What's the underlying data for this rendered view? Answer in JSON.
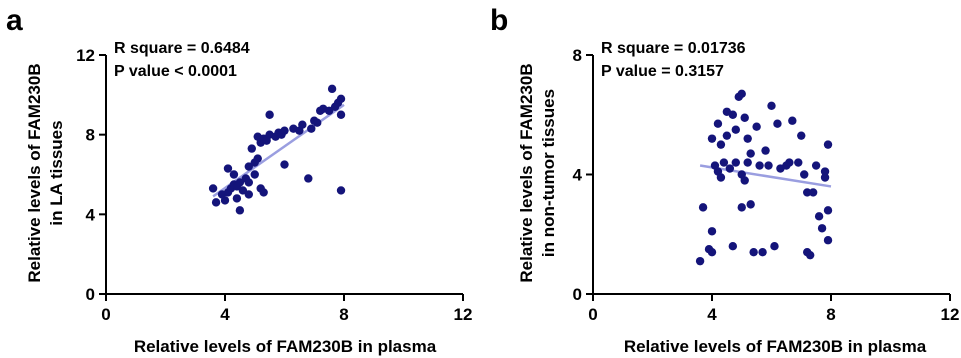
{
  "chart_data": [
    {
      "panel_label": "a",
      "type": "scatter",
      "xlabel": "Relative levels of FAM230B in plasma",
      "ylabel_lines": [
        "Relative levels of FAM230B",
        "in LA tissues"
      ],
      "xlim": [
        0,
        12
      ],
      "ylim": [
        0,
        12
      ],
      "xticks": [
        0,
        4,
        8,
        12
      ],
      "yticks": [
        0,
        4,
        8,
        12
      ],
      "annotations": [
        "R square = 0.6484",
        "P value < 0.0001"
      ],
      "point_color": "#14147a",
      "fit_color": "#9a9ee0",
      "fit_line": {
        "x": [
          3.6,
          8.0
        ],
        "y": [
          4.9,
          9.5
        ]
      },
      "points": [
        {
          "x": 3.6,
          "y": 5.3
        },
        {
          "x": 3.7,
          "y": 4.6
        },
        {
          "x": 3.9,
          "y": 5.0
        },
        {
          "x": 4.0,
          "y": 4.7
        },
        {
          "x": 4.1,
          "y": 5.1
        },
        {
          "x": 4.1,
          "y": 6.3
        },
        {
          "x": 4.2,
          "y": 5.3
        },
        {
          "x": 4.3,
          "y": 6.0
        },
        {
          "x": 4.3,
          "y": 5.5
        },
        {
          "x": 4.4,
          "y": 4.8
        },
        {
          "x": 4.4,
          "y": 5.4
        },
        {
          "x": 4.5,
          "y": 4.2
        },
        {
          "x": 4.5,
          "y": 5.6
        },
        {
          "x": 4.6,
          "y": 5.2
        },
        {
          "x": 4.7,
          "y": 5.8
        },
        {
          "x": 4.8,
          "y": 5.6
        },
        {
          "x": 4.8,
          "y": 6.4
        },
        {
          "x": 4.8,
          "y": 5.0
        },
        {
          "x": 4.9,
          "y": 7.3
        },
        {
          "x": 5.0,
          "y": 6.0
        },
        {
          "x": 5.0,
          "y": 6.6
        },
        {
          "x": 5.1,
          "y": 7.9
        },
        {
          "x": 5.1,
          "y": 6.8
        },
        {
          "x": 5.2,
          "y": 5.3
        },
        {
          "x": 5.2,
          "y": 7.6
        },
        {
          "x": 5.3,
          "y": 5.1
        },
        {
          "x": 5.3,
          "y": 7.8
        },
        {
          "x": 5.4,
          "y": 7.7
        },
        {
          "x": 5.5,
          "y": 9.0
        },
        {
          "x": 5.5,
          "y": 8.0
        },
        {
          "x": 5.7,
          "y": 7.9
        },
        {
          "x": 5.8,
          "y": 8.1
        },
        {
          "x": 5.9,
          "y": 8.0
        },
        {
          "x": 6.0,
          "y": 8.2
        },
        {
          "x": 6.0,
          "y": 6.5
        },
        {
          "x": 6.3,
          "y": 8.3
        },
        {
          "x": 6.5,
          "y": 8.2
        },
        {
          "x": 6.6,
          "y": 8.5
        },
        {
          "x": 6.8,
          "y": 5.8
        },
        {
          "x": 6.9,
          "y": 8.3
        },
        {
          "x": 7.0,
          "y": 8.7
        },
        {
          "x": 7.1,
          "y": 8.6
        },
        {
          "x": 7.2,
          "y": 9.2
        },
        {
          "x": 7.3,
          "y": 9.3
        },
        {
          "x": 7.5,
          "y": 9.2
        },
        {
          "x": 7.6,
          "y": 10.3
        },
        {
          "x": 7.7,
          "y": 9.4
        },
        {
          "x": 7.8,
          "y": 9.6
        },
        {
          "x": 7.9,
          "y": 9.8
        },
        {
          "x": 7.9,
          "y": 5.2
        },
        {
          "x": 7.9,
          "y": 9.0
        }
      ]
    },
    {
      "panel_label": "b",
      "type": "scatter",
      "xlabel": "Relative levels of FAM230B in plasma",
      "ylabel_lines": [
        "Relative levels of FAM230B",
        "in non-tumor tissues"
      ],
      "xlim": [
        0,
        12
      ],
      "ylim": [
        0,
        8
      ],
      "xticks": [
        0,
        4,
        8,
        12
      ],
      "yticks": [
        0,
        4,
        8
      ],
      "annotations": [
        "R square = 0.01736",
        "P value = 0.3157"
      ],
      "point_color": "#14147a",
      "fit_color": "#9a9ee0",
      "fit_line": {
        "x": [
          3.6,
          8.0
        ],
        "y": [
          4.3,
          3.6
        ]
      },
      "points": [
        {
          "x": 3.6,
          "y": 1.1
        },
        {
          "x": 3.7,
          "y": 2.9
        },
        {
          "x": 3.9,
          "y": 1.5
        },
        {
          "x": 4.0,
          "y": 1.4
        },
        {
          "x": 4.0,
          "y": 2.1
        },
        {
          "x": 4.0,
          "y": 5.2
        },
        {
          "x": 4.1,
          "y": 4.3
        },
        {
          "x": 4.2,
          "y": 4.1
        },
        {
          "x": 4.2,
          "y": 5.7
        },
        {
          "x": 4.3,
          "y": 3.9
        },
        {
          "x": 4.3,
          "y": 5.0
        },
        {
          "x": 4.4,
          "y": 4.4
        },
        {
          "x": 4.5,
          "y": 6.1
        },
        {
          "x": 4.5,
          "y": 5.3
        },
        {
          "x": 4.6,
          "y": 4.2
        },
        {
          "x": 4.7,
          "y": 1.6
        },
        {
          "x": 4.7,
          "y": 6.0
        },
        {
          "x": 4.8,
          "y": 4.4
        },
        {
          "x": 4.8,
          "y": 5.5
        },
        {
          "x": 4.9,
          "y": 6.6
        },
        {
          "x": 5.0,
          "y": 6.7
        },
        {
          "x": 5.0,
          "y": 4.0
        },
        {
          "x": 5.0,
          "y": 2.9
        },
        {
          "x": 5.1,
          "y": 5.9
        },
        {
          "x": 5.1,
          "y": 3.8
        },
        {
          "x": 5.2,
          "y": 4.4
        },
        {
          "x": 5.2,
          "y": 5.2
        },
        {
          "x": 5.3,
          "y": 4.7
        },
        {
          "x": 5.3,
          "y": 3.0
        },
        {
          "x": 5.4,
          "y": 1.4
        },
        {
          "x": 5.5,
          "y": 5.6
        },
        {
          "x": 5.6,
          "y": 4.3
        },
        {
          "x": 5.7,
          "y": 1.4
        },
        {
          "x": 5.8,
          "y": 4.8
        },
        {
          "x": 5.9,
          "y": 4.3
        },
        {
          "x": 6.0,
          "y": 6.3
        },
        {
          "x": 6.1,
          "y": 1.6
        },
        {
          "x": 6.2,
          "y": 5.7
        },
        {
          "x": 6.3,
          "y": 4.2
        },
        {
          "x": 6.5,
          "y": 4.3
        },
        {
          "x": 6.6,
          "y": 4.4
        },
        {
          "x": 6.7,
          "y": 5.8
        },
        {
          "x": 6.9,
          "y": 4.4
        },
        {
          "x": 7.0,
          "y": 5.3
        },
        {
          "x": 7.1,
          "y": 4.0
        },
        {
          "x": 7.2,
          "y": 1.4
        },
        {
          "x": 7.2,
          "y": 3.4
        },
        {
          "x": 7.3,
          "y": 1.3
        },
        {
          "x": 7.4,
          "y": 3.4
        },
        {
          "x": 7.5,
          "y": 4.3
        },
        {
          "x": 7.6,
          "y": 2.6
        },
        {
          "x": 7.7,
          "y": 2.2
        },
        {
          "x": 7.8,
          "y": 3.9
        },
        {
          "x": 7.8,
          "y": 4.1
        },
        {
          "x": 7.9,
          "y": 5.0
        },
        {
          "x": 7.9,
          "y": 2.8
        },
        {
          "x": 7.9,
          "y": 1.8
        }
      ]
    }
  ]
}
